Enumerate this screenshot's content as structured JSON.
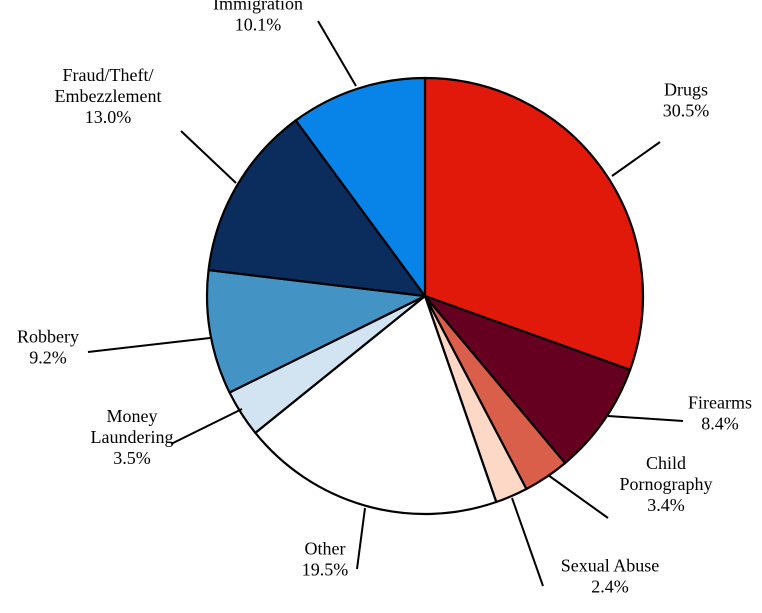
{
  "chart_data": {
    "type": "pie",
    "title": "",
    "start_angle_deg": 0,
    "direction": "clockwise",
    "slices": [
      {
        "name_lines": [
          "Drugs"
        ],
        "value": 30.5,
        "value_label": "30.5%",
        "color": "#e0190a"
      },
      {
        "name_lines": [
          "Firearms"
        ],
        "value": 8.4,
        "value_label": "8.4%",
        "color": "#660020"
      },
      {
        "name_lines": [
          "Child",
          "Pornography"
        ],
        "value": 3.4,
        "value_label": "3.4%",
        "color": "#d95f4b"
      },
      {
        "name_lines": [
          "Sexual Abuse"
        ],
        "value": 2.4,
        "value_label": "2.4%",
        "color": "#fdd8c6"
      },
      {
        "name_lines": [
          "Other"
        ],
        "value": 19.5,
        "value_label": "19.5%",
        "color": "#ffffff"
      },
      {
        "name_lines": [
          "Money",
          "Laundering"
        ],
        "value": 3.5,
        "value_label": "3.5%",
        "color": "#d2e4f1"
      },
      {
        "name_lines": [
          "Robbery"
        ],
        "value": 9.2,
        "value_label": "9.2%",
        "color": "#4393c4"
      },
      {
        "name_lines": [
          "Fraud/Theft/",
          "Embezzlement"
        ],
        "value": 13.0,
        "value_label": "13.0%",
        "color": "#0a2d5e"
      },
      {
        "name_lines": [
          "Immigration"
        ],
        "value": 10.1,
        "value_label": "10.1%",
        "color": "#0883e8"
      }
    ]
  }
}
